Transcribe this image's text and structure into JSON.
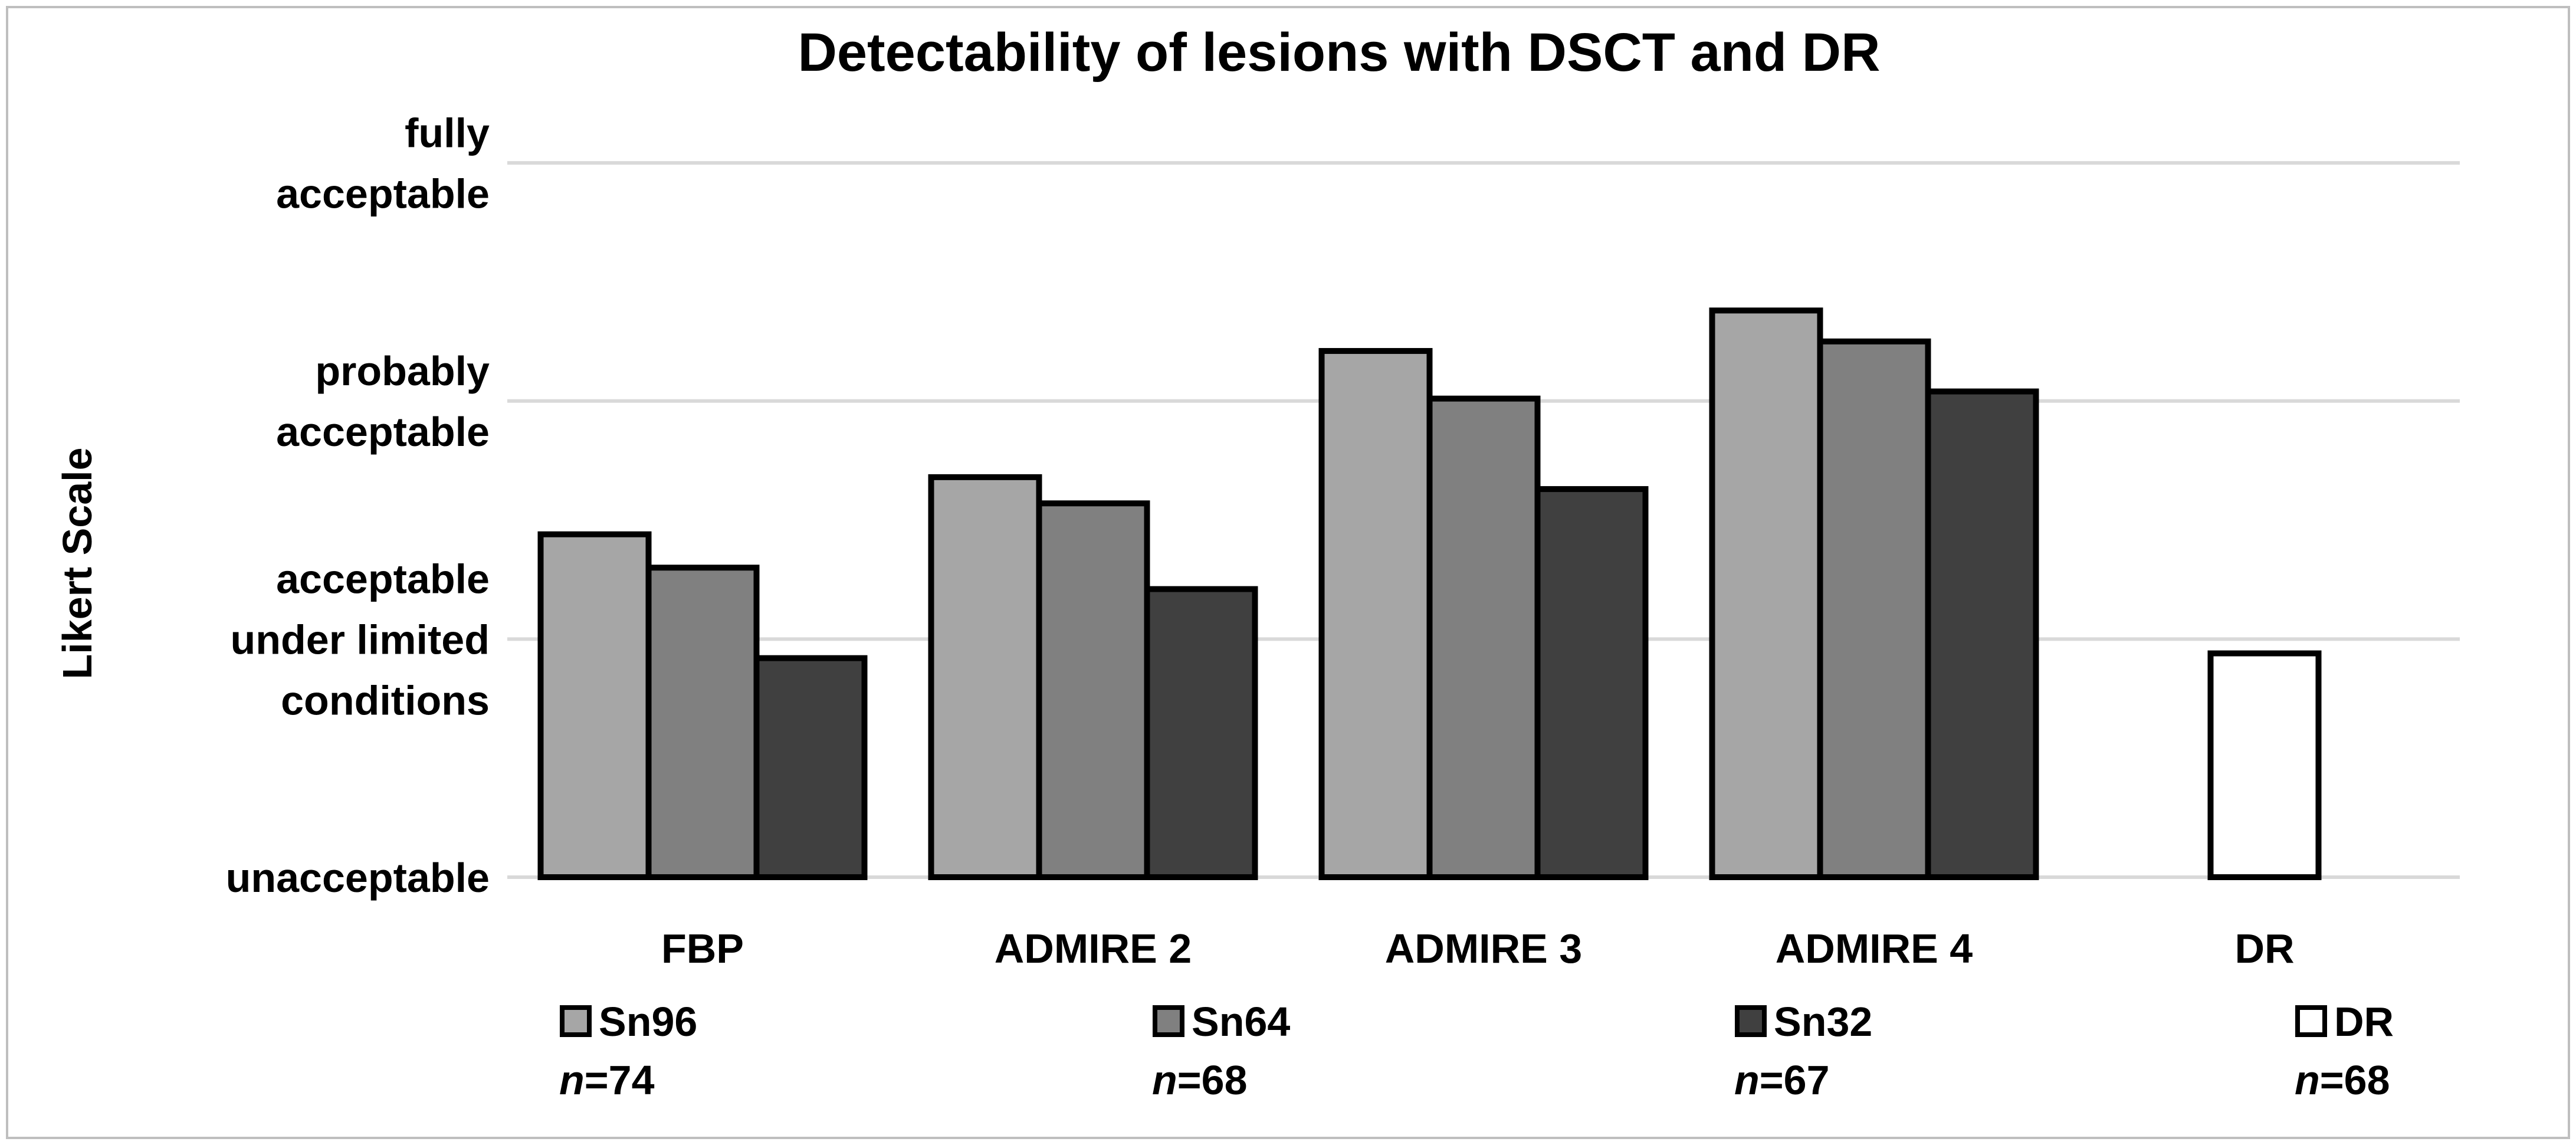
{
  "chart_data": {
    "type": "bar",
    "title": "Detectability of lesions with DSCT and DR",
    "ylabel": "Likert Scale",
    "xlabel": "",
    "ylim": [
      1,
      4.3
    ],
    "y_ticks": [
      {
        "value": 1,
        "lines": [
          "unacceptable"
        ]
      },
      {
        "value": 2,
        "lines": [
          "acceptable",
          "under limited",
          "conditions"
        ]
      },
      {
        "value": 3,
        "lines": [
          "probably",
          "acceptable"
        ]
      },
      {
        "value": 4,
        "lines": [
          "fully",
          "acceptable"
        ]
      }
    ],
    "grid": true,
    "categories": [
      "FBP",
      "ADMIRE 2",
      "ADMIRE 3",
      "ADMIRE 4",
      "DR"
    ],
    "series": [
      {
        "name": "Sn96",
        "n_label": "n",
        "n_value": "=74",
        "color": "#a6a6a6",
        "values": [
          2.44,
          2.68,
          3.21,
          3.38,
          null
        ]
      },
      {
        "name": "Sn64",
        "n_label": "n",
        "n_value": "=68",
        "color": "#808080",
        "values": [
          2.3,
          2.57,
          3.01,
          3.25,
          null
        ]
      },
      {
        "name": "Sn32",
        "n_label": "n",
        "n_value": "=67",
        "color": "#404040",
        "values": [
          1.92,
          2.21,
          2.63,
          3.04,
          null
        ]
      },
      {
        "name": "DR",
        "n_label": "n",
        "n_value": "=68",
        "color": "#ffffff",
        "values": [
          null,
          null,
          null,
          null,
          1.94
        ]
      }
    ],
    "legend_position": "bottom"
  }
}
